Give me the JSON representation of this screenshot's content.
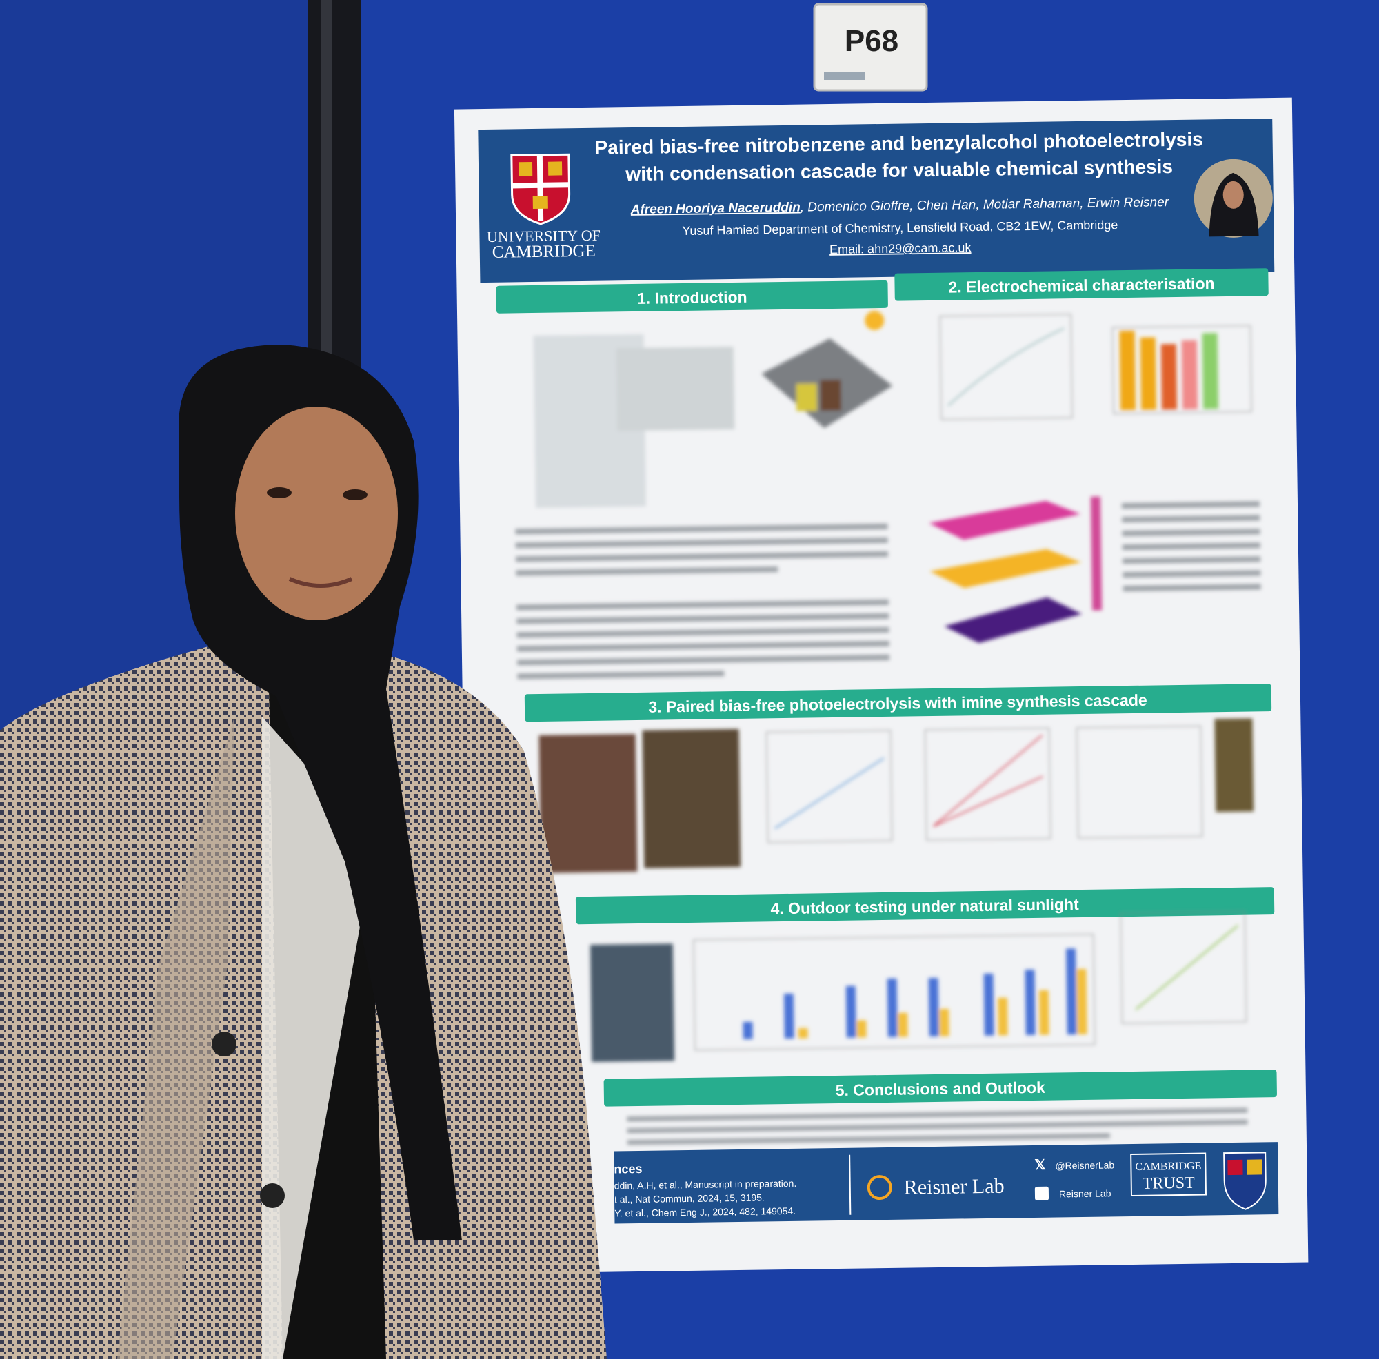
{
  "badge": {
    "label": "P68"
  },
  "poster": {
    "header": {
      "title_lines": [
        "Paired bias-free nitrobenzene and benzylalcohol photoelectrolysis",
        "with condensation cascade for valuable chemical synthesis"
      ],
      "authors_lead": "Afreen Hooriya Naceruddin",
      "authors_rest": ", Domenico Gioffre, Chen Han, Motiar Rahaman, Erwin Reisner",
      "department": "Yusuf Hamied Department of Chemistry, Lensfield Road, CB2 1EW, Cambridge",
      "email": "Email: ahn29@cam.ac.uk",
      "university": [
        "UNIVERSITY OF",
        "CAMBRIDGE"
      ]
    },
    "sections": [
      "1. Introduction",
      "2. Electrochemical characterisation",
      "3. Paired bias-free photoelectrolysis with imine synthesis cascade",
      "4. Outdoor testing under natural sunlight",
      "5. Conclusions and Outlook"
    ],
    "footer": {
      "references_heading": "nces",
      "references": [
        "ddin, A.H, et al., Manuscript in preparation.",
        "t al., Nat Commun, 2024, 15, 3195.",
        "Y. et al., Chem Eng J., 2024, 482, 149054."
      ],
      "lab": "Reisner Lab",
      "twitter": "@ReisnerLab",
      "linkedin": "Reisner Lab",
      "trust": [
        "CAMBRIDGE",
        "TRUST"
      ]
    }
  }
}
